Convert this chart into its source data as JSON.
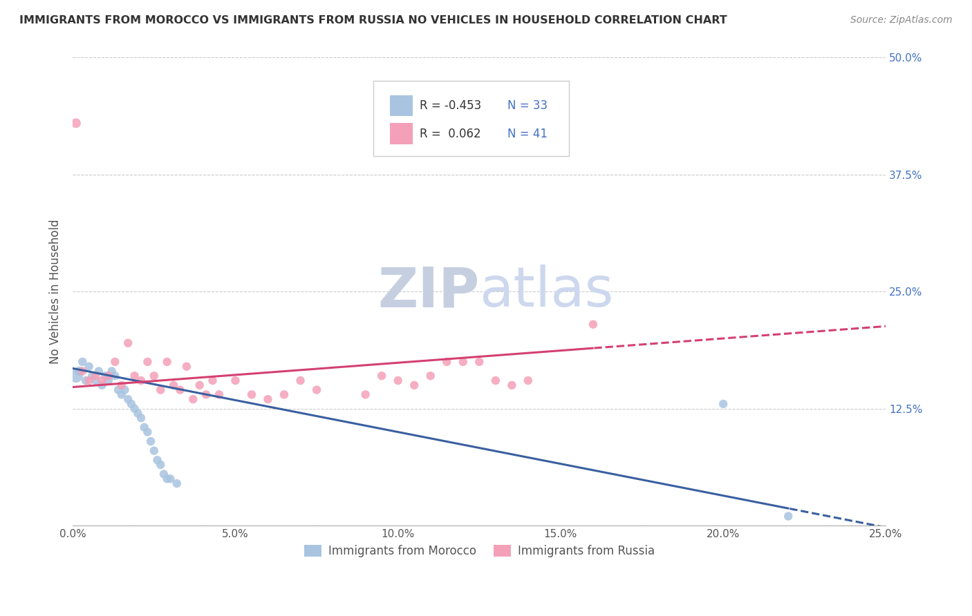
{
  "title": "IMMIGRANTS FROM MOROCCO VS IMMIGRANTS FROM RUSSIA NO VEHICLES IN HOUSEHOLD CORRELATION CHART",
  "source": "Source: ZipAtlas.com",
  "ylabel": "No Vehicles in Household",
  "xlim": [
    0.0,
    0.25
  ],
  "ylim": [
    0.0,
    0.5
  ],
  "xticks": [
    0.0,
    0.05,
    0.1,
    0.15,
    0.2,
    0.25
  ],
  "yticks_left": [
    0.0,
    0.125,
    0.25,
    0.375,
    0.5
  ],
  "ytick_labels_right": [
    "12.5%",
    "25.0%",
    "37.5%",
    "50.0%"
  ],
  "xtick_labels": [
    "0.0%",
    "5.0%",
    "10.0%",
    "15.0%",
    "20.0%",
    "25.0%"
  ],
  "morocco_R": -0.453,
  "morocco_N": 33,
  "russia_R": 0.062,
  "russia_N": 41,
  "morocco_color": "#a8c4e0",
  "russia_color": "#f4a0b8",
  "morocco_line_color": "#3a5fa0",
  "russia_line_color": "#d44070",
  "background_color": "#ffffff",
  "grid_color": "#cccccc",
  "watermark_color": "#cdd8ee",
  "morocco_x": [
    0.001,
    0.002,
    0.003,
    0.004,
    0.005,
    0.006,
    0.007,
    0.008,
    0.009,
    0.01,
    0.011,
    0.012,
    0.013,
    0.014,
    0.015,
    0.016,
    0.017,
    0.018,
    0.019,
    0.02,
    0.021,
    0.022,
    0.023,
    0.024,
    0.025,
    0.026,
    0.027,
    0.028,
    0.029,
    0.03,
    0.032,
    0.2,
    0.22
  ],
  "morocco_y": [
    0.16,
    0.165,
    0.175,
    0.155,
    0.17,
    0.16,
    0.155,
    0.165,
    0.15,
    0.16,
    0.155,
    0.165,
    0.16,
    0.145,
    0.14,
    0.145,
    0.135,
    0.13,
    0.125,
    0.12,
    0.115,
    0.105,
    0.1,
    0.09,
    0.08,
    0.07,
    0.065,
    0.055,
    0.05,
    0.05,
    0.045,
    0.13,
    0.01
  ],
  "morocco_sizes": [
    200,
    100,
    80,
    80,
    80,
    80,
    80,
    80,
    80,
    80,
    80,
    80,
    80,
    80,
    80,
    80,
    80,
    80,
    80,
    80,
    80,
    80,
    80,
    80,
    80,
    80,
    80,
    80,
    80,
    80,
    80,
    80,
    80
  ],
  "russia_x": [
    0.001,
    0.003,
    0.005,
    0.007,
    0.009,
    0.011,
    0.013,
    0.015,
    0.017,
    0.019,
    0.021,
    0.023,
    0.025,
    0.027,
    0.029,
    0.031,
    0.033,
    0.035,
    0.037,
    0.039,
    0.041,
    0.043,
    0.045,
    0.05,
    0.055,
    0.06,
    0.065,
    0.07,
    0.075,
    0.09,
    0.095,
    0.1,
    0.105,
    0.11,
    0.115,
    0.12,
    0.125,
    0.13,
    0.135,
    0.14,
    0.16
  ],
  "russia_y": [
    0.43,
    0.165,
    0.155,
    0.16,
    0.155,
    0.16,
    0.175,
    0.15,
    0.195,
    0.16,
    0.155,
    0.175,
    0.16,
    0.145,
    0.175,
    0.15,
    0.145,
    0.17,
    0.135,
    0.15,
    0.14,
    0.155,
    0.14,
    0.155,
    0.14,
    0.135,
    0.14,
    0.155,
    0.145,
    0.14,
    0.16,
    0.155,
    0.15,
    0.16,
    0.175,
    0.175,
    0.175,
    0.155,
    0.15,
    0.155,
    0.215
  ],
  "russia_sizes": [
    100,
    80,
    80,
    80,
    80,
    80,
    80,
    80,
    80,
    80,
    80,
    80,
    80,
    80,
    80,
    80,
    80,
    80,
    80,
    80,
    80,
    80,
    80,
    80,
    80,
    80,
    80,
    80,
    80,
    80,
    80,
    80,
    80,
    80,
    80,
    80,
    80,
    80,
    80,
    80,
    80
  ]
}
